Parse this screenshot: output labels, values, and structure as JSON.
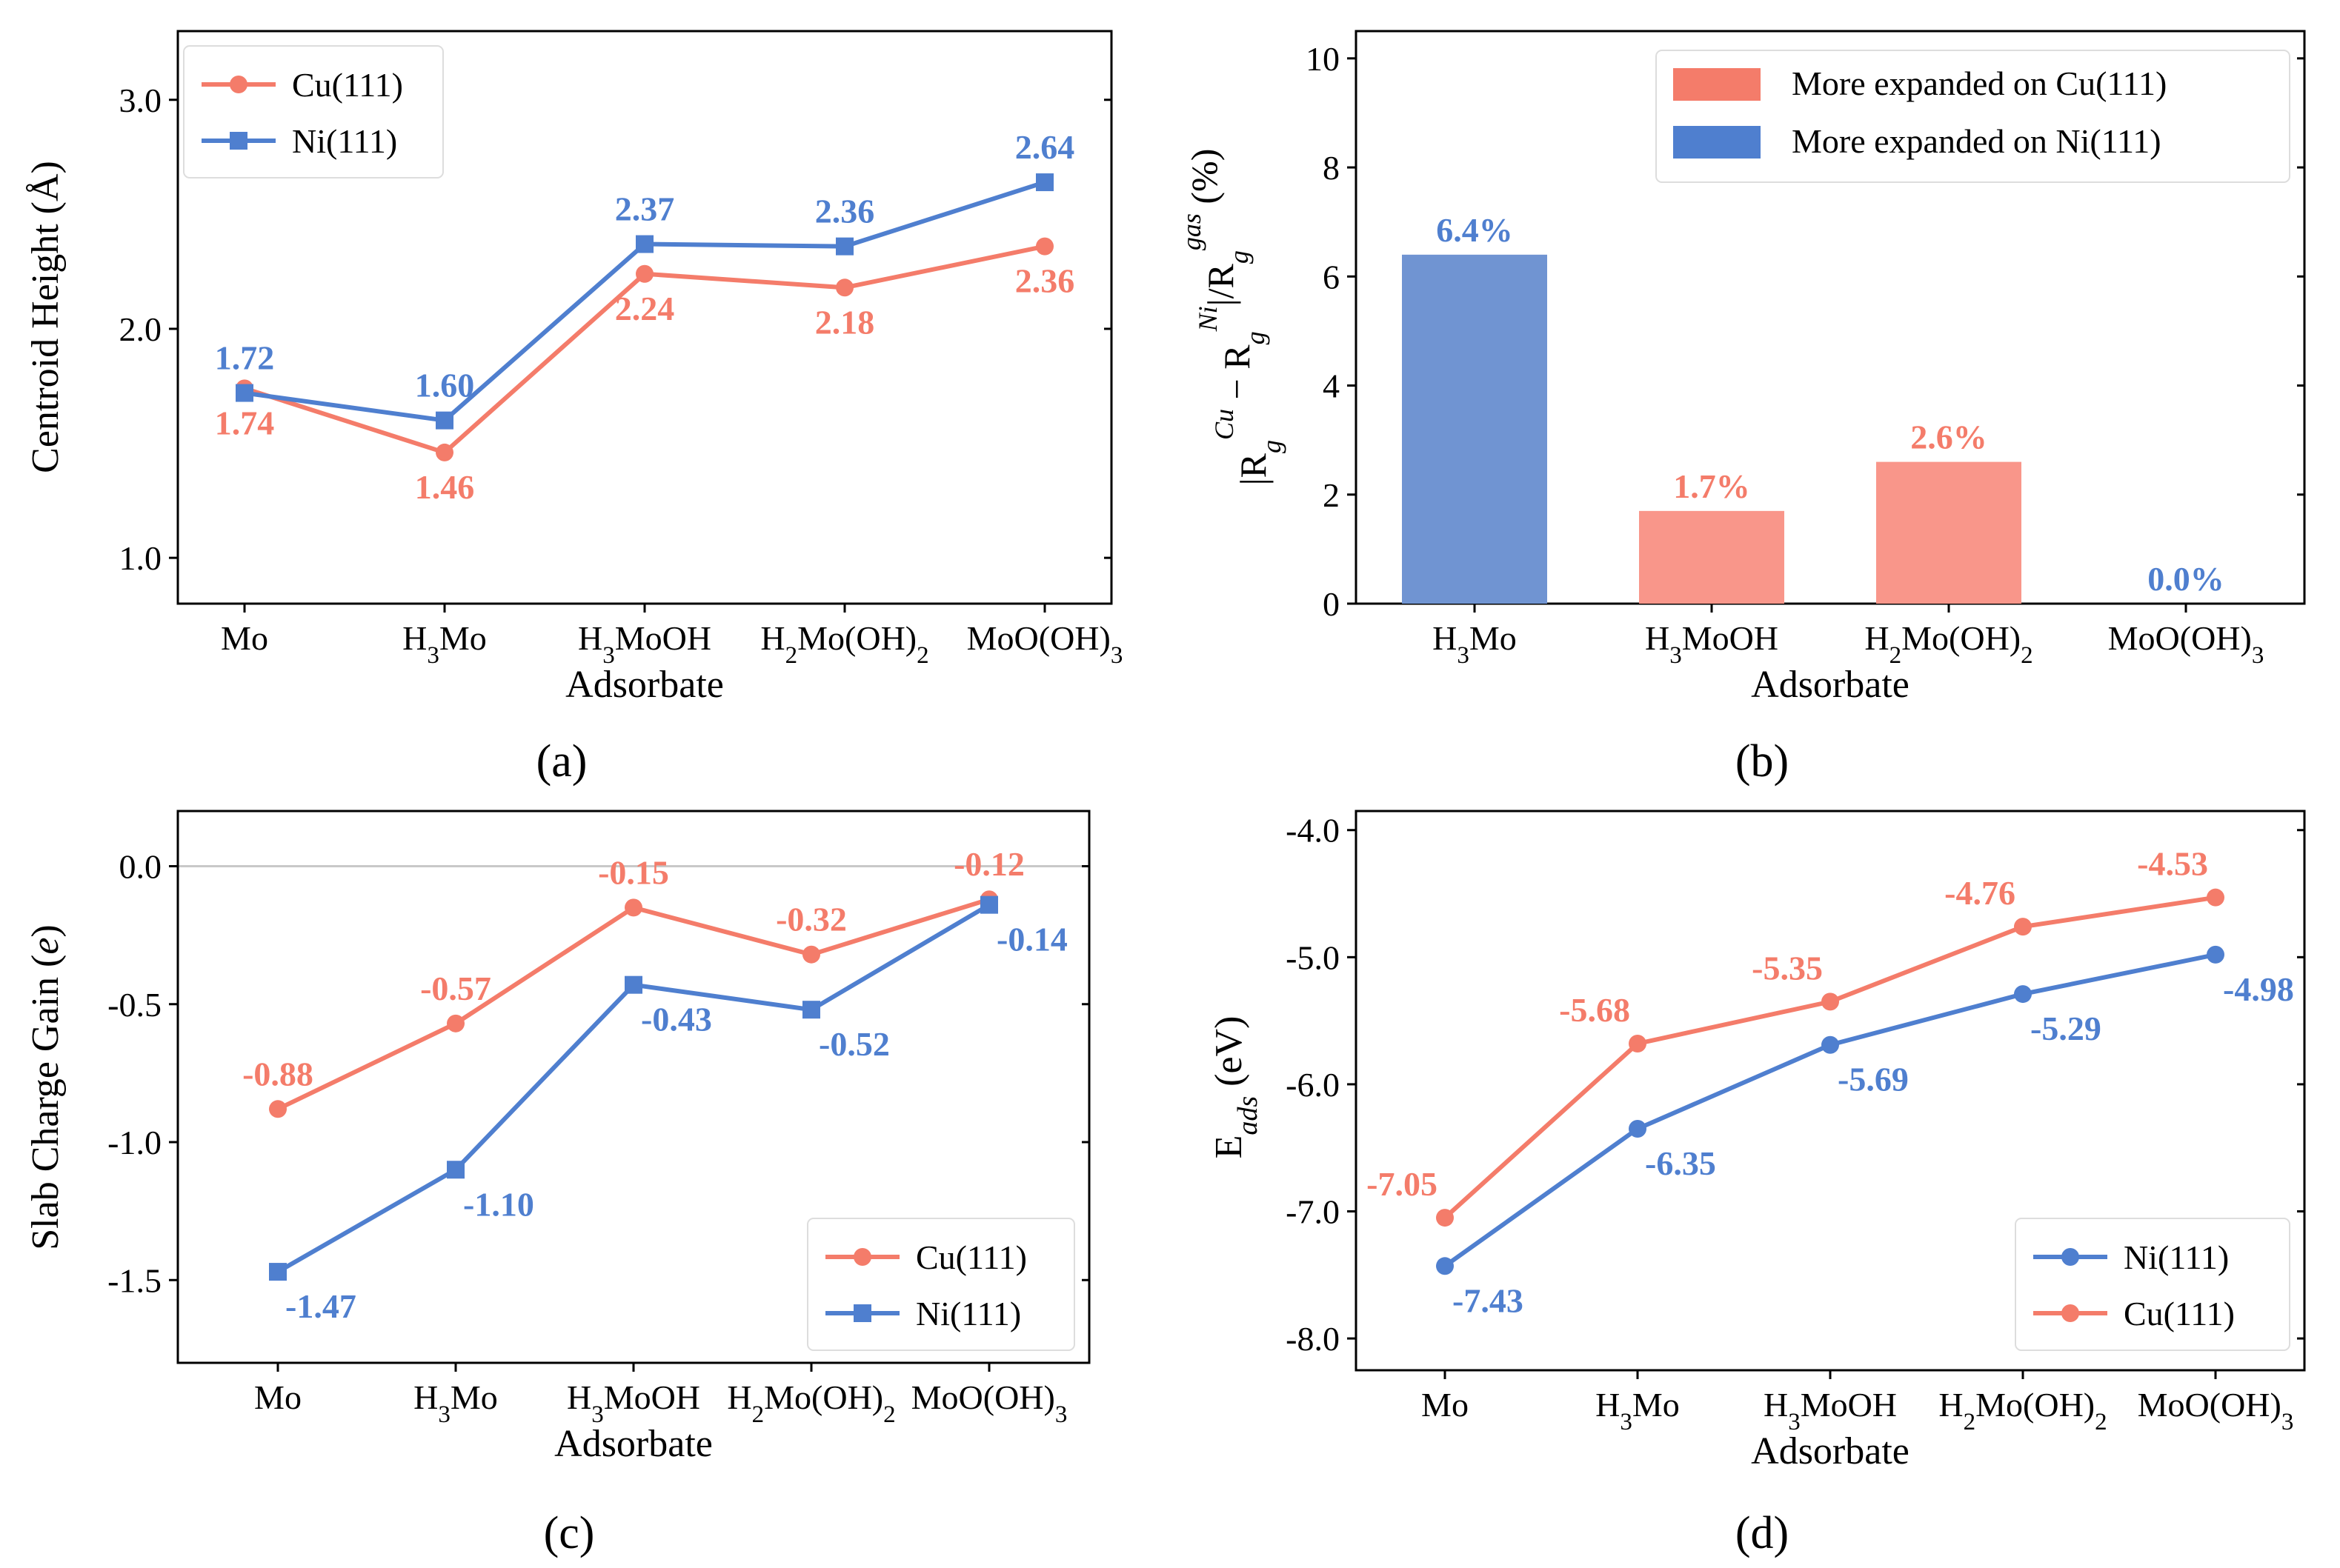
{
  "colors": {
    "cu": "#f47c6a",
    "ni": "#4f7fcf",
    "bar_cu": "#f9968a",
    "bar_ni": "#7094d2",
    "axis": "#000000",
    "zero_line": "#c8c8c8"
  },
  "panels": {
    "a": "(a)",
    "b": "(b)",
    "c": "(c)",
    "d": "(d)"
  },
  "chart_data": [
    {
      "id": "a",
      "type": "line",
      "title": "",
      "xlabel": "Adsorbate",
      "ylabel": "Centroid Height (Å)",
      "categories": [
        "Mo",
        "H3Mo",
        "H3MoOH",
        "H2Mo(OH)2",
        "MoO(OH)3"
      ],
      "ylim": [
        0.8,
        3.3
      ],
      "yticks": [
        1.0,
        2.0,
        3.0
      ],
      "ytick_labels": [
        "1.0",
        "2.0",
        "3.0"
      ],
      "legend_position": "top-left",
      "series": [
        {
          "name": "Cu(111)",
          "color_key": "cu",
          "marker": "circle",
          "values": [
            1.74,
            1.46,
            2.24,
            2.18,
            2.36
          ],
          "labels": [
            "1.74",
            "1.46",
            "2.24",
            "2.18",
            "2.36"
          ],
          "label_pos": [
            "below",
            "below",
            "below",
            "below",
            "below"
          ]
        },
        {
          "name": "Ni(111)",
          "color_key": "ni",
          "marker": "square",
          "values": [
            1.72,
            1.6,
            2.37,
            2.36,
            2.64
          ],
          "labels": [
            "1.72",
            "1.60",
            "2.37",
            "2.36",
            "2.64"
          ],
          "label_pos": [
            "above",
            "above",
            "above",
            "above",
            "above"
          ]
        }
      ]
    },
    {
      "id": "b",
      "type": "bar",
      "title": "",
      "xlabel": "Adsorbate",
      "ylabel": "|Rg^Cu − Rg^Ni|/Rg^gas (%)",
      "categories": [
        "H3Mo",
        "H3MoOH",
        "H2Mo(OH)2",
        "MoO(OH)3"
      ],
      "values": [
        6.4,
        1.7,
        2.6,
        0.0
      ],
      "value_labels": [
        "6.4%",
        "1.7%",
        "2.6%",
        "0.0%"
      ],
      "bar_color_keys": [
        "ni",
        "cu",
        "cu",
        "ni"
      ],
      "ylim": [
        0,
        10.5
      ],
      "yticks": [
        0,
        2,
        4,
        6,
        8,
        10
      ],
      "ytick_labels": [
        "0",
        "2",
        "4",
        "6",
        "8",
        "10"
      ],
      "legend_position": "top-right",
      "legend": [
        {
          "name": "More expanded on Cu(111)",
          "color_key": "cu"
        },
        {
          "name": "More expanded on Ni(111)",
          "color_key": "ni"
        }
      ]
    },
    {
      "id": "c",
      "type": "line",
      "title": "",
      "xlabel": "Adsorbate",
      "ylabel": "Slab Charge Gain (e)",
      "categories": [
        "Mo",
        "H3Mo",
        "H3MoOH",
        "H2Mo(OH)2",
        "MoO(OH)3"
      ],
      "ylim": [
        -1.8,
        0.2
      ],
      "yticks": [
        -1.5,
        -1.0,
        -0.5,
        0.0
      ],
      "ytick_labels": [
        "-1.5",
        "-1.0",
        "-0.5",
        "0.0"
      ],
      "zero_line": true,
      "legend_position": "bottom-right",
      "series": [
        {
          "name": "Cu(111)",
          "color_key": "cu",
          "marker": "circle",
          "values": [
            -0.88,
            -0.57,
            -0.15,
            -0.32,
            -0.12
          ],
          "labels": [
            "-0.88",
            "-0.57",
            "-0.15",
            "-0.32",
            "-0.12"
          ],
          "label_pos": [
            "above",
            "above",
            "above",
            "above",
            "above"
          ]
        },
        {
          "name": "Ni(111)",
          "color_key": "ni",
          "marker": "square",
          "values": [
            -1.47,
            -1.1,
            -0.43,
            -0.52,
            -0.14
          ],
          "labels": [
            "-1.47",
            "-1.10",
            "-0.43",
            "-0.52",
            "-0.14"
          ],
          "label_pos": [
            "below-right",
            "below-right",
            "below-right",
            "below-right",
            "below-right"
          ]
        }
      ]
    },
    {
      "id": "d",
      "type": "line",
      "title": "",
      "xlabel": "Adsorbate",
      "ylabel": "Eads (eV)",
      "categories": [
        "Mo",
        "H3Mo",
        "H3MoOH",
        "H2Mo(OH)2",
        "MoO(OH)3"
      ],
      "ylim": [
        -8.25,
        -3.85
      ],
      "yticks": [
        -8.0,
        -7.0,
        -6.0,
        -5.0,
        -4.0
      ],
      "ytick_labels": [
        "-8.0",
        "-7.0",
        "-6.0",
        "-5.0",
        "-4.0"
      ],
      "legend_position": "bottom-right",
      "series": [
        {
          "name": "Ni(111)",
          "color_key": "ni",
          "marker": "circle",
          "values": [
            -7.43,
            -6.35,
            -5.69,
            -5.29,
            -4.98
          ],
          "labels": [
            "-7.43",
            "-6.35",
            "-5.69",
            "-5.29",
            "-4.98"
          ],
          "label_pos": [
            "below-right",
            "below-right",
            "below-right",
            "below-right",
            "below-right"
          ]
        },
        {
          "name": "Cu(111)",
          "color_key": "cu",
          "marker": "circle",
          "values": [
            -7.05,
            -5.68,
            -5.35,
            -4.76,
            -4.53
          ],
          "labels": [
            "-7.05",
            "-5.68",
            "-5.35",
            "-4.76",
            "-4.53"
          ],
          "label_pos": [
            "above-left",
            "above-left",
            "above-left",
            "above-left",
            "above-left"
          ]
        }
      ]
    }
  ]
}
